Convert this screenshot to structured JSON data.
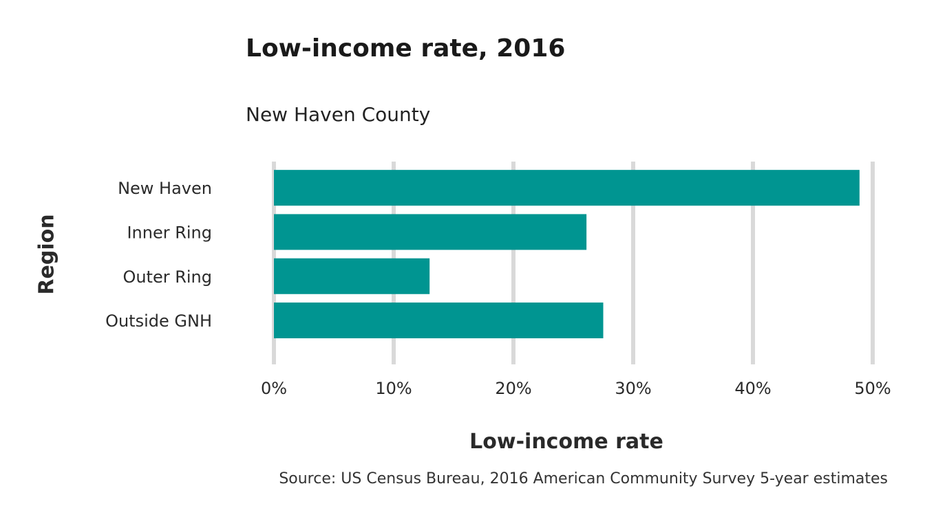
{
  "chart_data": {
    "type": "bar",
    "orientation": "horizontal",
    "title": "Low-income rate, 2016",
    "subtitle": "New Haven County",
    "xlabel": "Low-income rate",
    "ylabel": "Region",
    "categories": [
      "New Haven",
      "Inner Ring",
      "Outer Ring",
      "Outside GNH"
    ],
    "values": [
      48.9,
      26.1,
      13.0,
      27.5
    ],
    "xlim": [
      0,
      50
    ],
    "x_ticks": [
      "0%",
      "10%",
      "20%",
      "30%",
      "40%",
      "50%"
    ],
    "x_tick_values": [
      0,
      10,
      20,
      30,
      40,
      50
    ],
    "grid": "vertical",
    "bar_color": "#009591",
    "grid_color": "#d9d9d9",
    "caption": "Source: US Census Bureau, 2016 American Community Survey 5-year estimates"
  }
}
